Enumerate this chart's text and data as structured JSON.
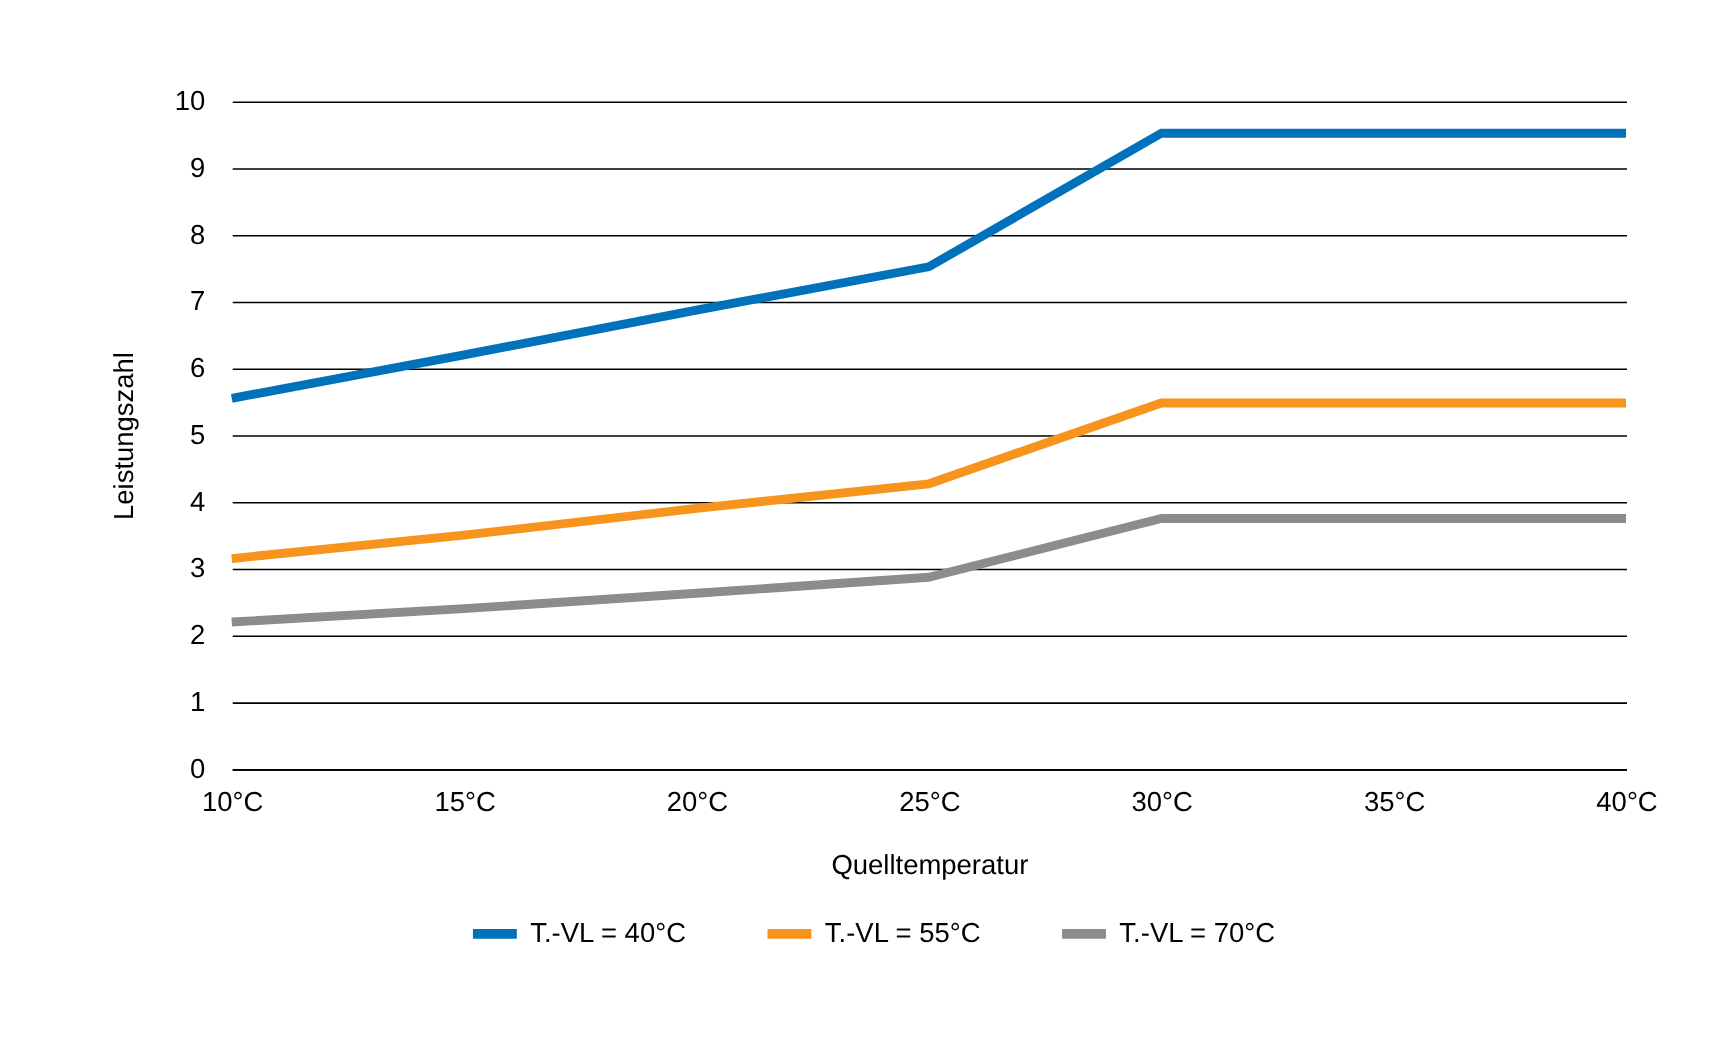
{
  "chart_data": {
    "type": "line",
    "xlabel": "Quelltemperatur",
    "ylabel": "Leistungszahl",
    "categories": [
      "10°C",
      "15°C",
      "20°C",
      "25°C",
      "30°C",
      "35°C",
      "40°C"
    ],
    "series": [
      {
        "name": "T.-VL = 40°C",
        "color": "#0072bc",
        "values": [
          5.55,
          6.2,
          6.87,
          7.52,
          9.52,
          9.52,
          9.52
        ]
      },
      {
        "name": "T.-VL = 55°C",
        "color": "#f7941d",
        "values": [
          3.15,
          3.5,
          3.9,
          4.27,
          5.48,
          5.48,
          5.48
        ]
      },
      {
        "name": "T.-VL = 70°C",
        "color": "#8c8c8c",
        "values": [
          2.2,
          2.4,
          2.63,
          2.87,
          3.75,
          3.75,
          3.75
        ]
      }
    ],
    "ylim": [
      0,
      10
    ],
    "yticks": [
      0,
      1,
      2,
      3,
      4,
      5,
      6,
      7,
      8,
      9,
      10
    ],
    "grid": "y",
    "legend": "bottom",
    "marker": "none",
    "line_style": "solid"
  }
}
